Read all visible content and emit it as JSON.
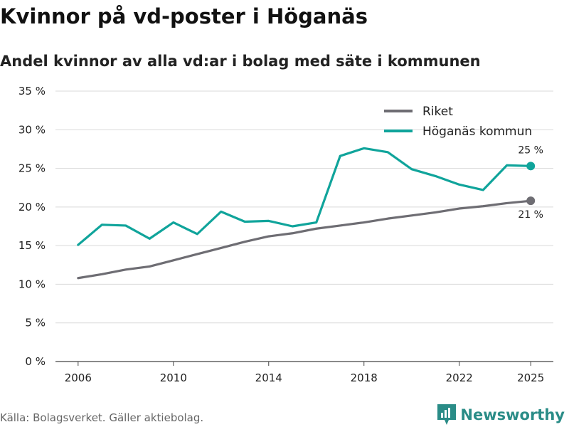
{
  "header": {
    "title": "Kvinnor på vd-poster i Höganäs",
    "subtitle": "Andel kvinnor av alla vd:ar i bolag med säte i kommunen"
  },
  "footer": {
    "source": "Källa: Bolagsverket. Gäller aktiebolag.",
    "brand": "Newsworthy",
    "brand_icon": "bar-chart-logo-icon"
  },
  "colors": {
    "riket": "#6e6d73",
    "hoganas": "#10a49b",
    "grid": "#d9d9d9",
    "brand": "#2a8c87"
  },
  "chart_data": {
    "type": "line",
    "x": [
      2006,
      2007,
      2008,
      2009,
      2010,
      2011,
      2012,
      2013,
      2014,
      2015,
      2016,
      2017,
      2018,
      2019,
      2020,
      2021,
      2022,
      2023,
      2024,
      2025
    ],
    "x_ticks": [
      "2006",
      "2010",
      "2014",
      "2018",
      "2022",
      "2025"
    ],
    "y_ticks": [
      "0 %",
      "5 %",
      "10 %",
      "15 %",
      "20 %",
      "25 %",
      "30 %",
      "35 %"
    ],
    "ylim": [
      0,
      35
    ],
    "grid": true,
    "legend_position": "top-right",
    "series": [
      {
        "name": "Riket",
        "color": "#6e6d73",
        "values": [
          10.8,
          11.3,
          11.9,
          12.3,
          13.1,
          13.9,
          14.7,
          15.5,
          16.2,
          16.6,
          17.2,
          17.6,
          18.0,
          18.5,
          18.9,
          19.3,
          19.8,
          20.1,
          20.5,
          20.8
        ],
        "end_label": "21 %"
      },
      {
        "name": "Höganäs kommun",
        "color": "#10a49b",
        "values": [
          15.1,
          17.7,
          17.6,
          15.9,
          18.0,
          16.5,
          19.4,
          18.1,
          18.2,
          17.5,
          18.0,
          26.6,
          27.6,
          27.1,
          24.9,
          24.0,
          22.9,
          22.2,
          25.4,
          25.3
        ],
        "end_label": "25 %"
      }
    ]
  }
}
